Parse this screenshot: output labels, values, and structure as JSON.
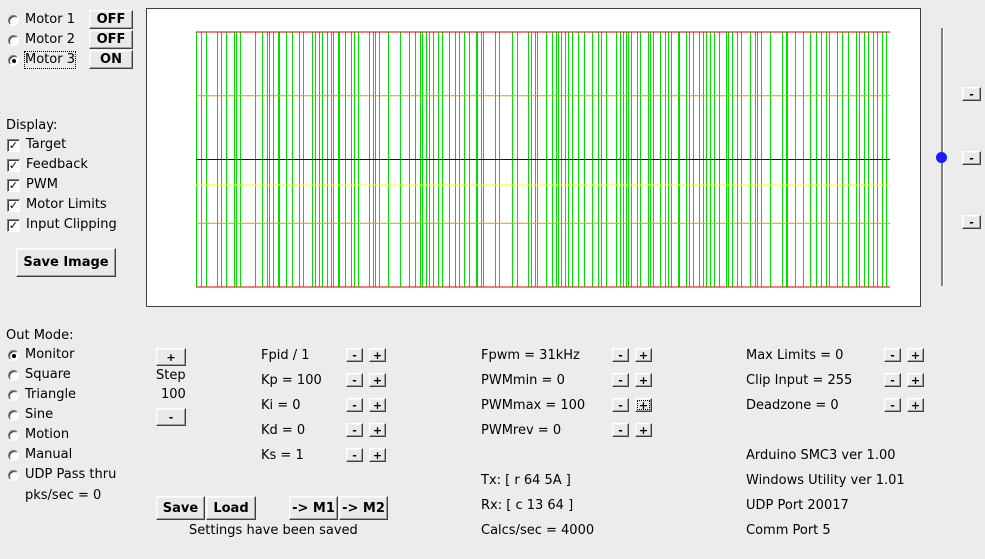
{
  "motors": [
    {
      "label": "Motor 1",
      "state": "OFF",
      "selected": false
    },
    {
      "label": "Motor 2",
      "state": "OFF",
      "selected": false
    },
    {
      "label": "Motor 3",
      "state": "ON",
      "selected": true
    }
  ],
  "display": {
    "title": "Display:",
    "items": [
      {
        "label": "Target",
        "checked": true
      },
      {
        "label": "Feedback",
        "checked": true
      },
      {
        "label": "PWM",
        "checked": true
      },
      {
        "label": "Motor Limits",
        "checked": true
      },
      {
        "label": "Input Clipping",
        "checked": true
      }
    ],
    "save_image": "Save Image"
  },
  "out_mode": {
    "title": "Out Mode:",
    "items": [
      {
        "label": "Monitor",
        "selected": true
      },
      {
        "label": "Square",
        "selected": false
      },
      {
        "label": "Triangle",
        "selected": false
      },
      {
        "label": "Sine",
        "selected": false
      },
      {
        "label": "Motion",
        "selected": false
      },
      {
        "label": "Manual",
        "selected": false
      },
      {
        "label": "UDP Pass thru",
        "selected": false
      }
    ],
    "pks_sec": "pks/sec = 0"
  },
  "step": {
    "plus": "+",
    "label": "Step",
    "value": "100",
    "minus": "-"
  },
  "params_col1": [
    "Fpid / 1",
    "Kp = 100",
    "Ki = 0",
    "Kd = 0",
    "Ks = 1"
  ],
  "params_col2": [
    "Fpwm = 31kHz",
    "PWMmin = 0",
    "PWMmax = 100",
    "PWMrev = 0"
  ],
  "params_col3": [
    "Max Limits = 0",
    "Clip Input = 255",
    "Deadzone = 0"
  ],
  "stepper": {
    "minus": "-",
    "plus": "+"
  },
  "serial": {
    "tx": "Tx: [ r 64 5A ]",
    "rx": "Rx: [ c 13 64 ]",
    "calcs": "Calcs/sec = 4000"
  },
  "info": {
    "arduino": "Arduino SMC3 ver 1.00",
    "windows": "Windows Utility ver 1.01",
    "udp": "UDP Port 20017",
    "comm": "Comm Port 5"
  },
  "actions": {
    "save": "Save",
    "load": "Load",
    "to_m1": "-> M1",
    "to_m2": "-> M2",
    "status": "Settings have been saved"
  },
  "side_buttons": [
    "-",
    "-",
    "-"
  ],
  "colors": {
    "pwm": "#00e000",
    "feedback": "#0000c0",
    "limits": "#e00000",
    "clip": "#d4a000",
    "target": "#ffff00",
    "slider": "#0000ff",
    "background": "#ececec"
  },
  "chart_data": {
    "type": "line",
    "series_shown": [
      "Target",
      "Feedback",
      "PWM",
      "Motor Limits",
      "Input Clipping"
    ],
    "limits_upper": 1.0,
    "limits_lower": -1.0,
    "clip_upper": 0.5,
    "clip_lower": -0.5,
    "feedback": 0.0,
    "target": -0.2,
    "pwm_pulse_x": [
      0.7,
      1.5,
      3.0,
      3.6,
      4.3,
      5.5,
      5.8,
      6.3,
      8.5,
      9.5,
      10.2,
      10.5,
      11.1,
      11.8,
      12.0,
      12.9,
      13.9,
      14.9,
      15.4,
      16.7,
      17.2,
      17.7,
      18.1,
      18.9,
      19.4,
      19.8,
      20.4,
      20.6,
      21.5,
      22.3,
      22.8,
      23.4,
      24.9,
      25.5,
      25.8,
      26.3,
      27.6,
      29.4,
      30.7,
      31.5,
      32.3,
      32.6,
      33.1,
      33.6,
      34.1,
      34.8,
      35.5,
      36.5,
      37.3,
      37.9,
      38.6,
      39.3,
      40.3,
      40.5,
      41.0,
      41.3,
      43.1,
      43.7,
      45.6,
      46.2,
      47.8,
      48.2,
      48.9,
      49.1,
      50.5,
      51.3,
      51.9,
      52.1,
      52.6,
      53.2,
      53.6,
      54.2,
      55.1,
      55.9,
      57.1,
      57.9,
      58.3,
      59.1,
      60.5,
      61.1,
      61.5,
      61.9,
      62.3,
      62.7,
      63.5,
      64.0,
      65.1,
      65.4,
      65.9,
      66.8,
      67.6,
      68.0,
      68.4,
      69.4,
      69.6,
      70.6,
      71.0,
      71.6,
      72.5,
      73.0,
      73.5,
      74.0,
      74.7,
      75.3,
      76.3,
      76.6,
      77.2,
      78.0,
      78.6,
      79.8,
      80.6,
      80.9,
      81.4,
      82.7,
      84.5,
      85.0,
      85.2,
      86.3,
      87.4,
      88.5,
      89.3,
      90.0,
      90.8,
      91.2,
      92.4,
      93.1,
      93.9,
      95.1,
      95.5,
      96.3,
      96.9,
      97.6,
      98.1,
      98.8,
      99.4
    ],
    "pwm_levels": {
      "high": 1.0,
      "low": -1.0
    },
    "xlim": [
      0,
      100
    ],
    "ylim": [
      -1.0,
      1.0
    ]
  }
}
